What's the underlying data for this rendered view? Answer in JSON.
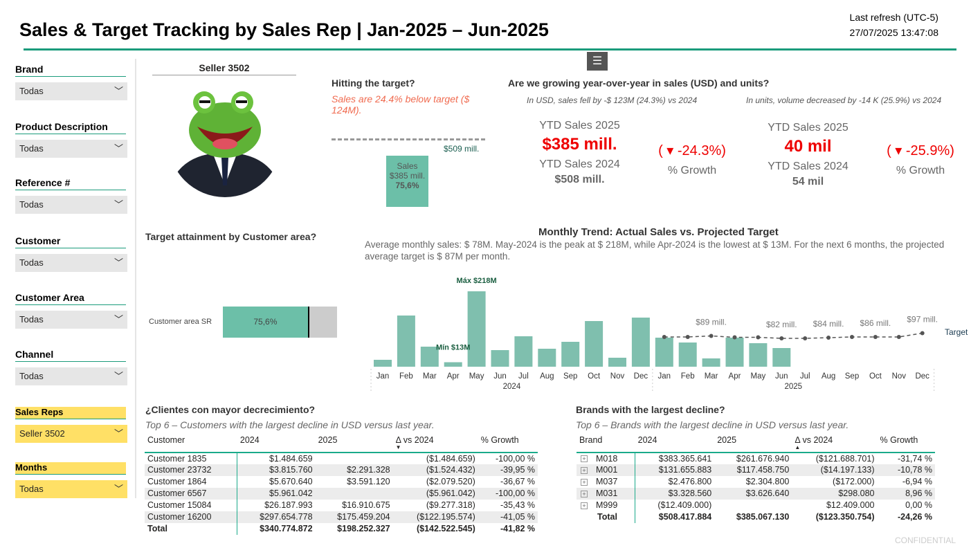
{
  "header": {
    "title": "Sales & Target Tracking by Sales Rep | Jan-2025 – Jun-2025",
    "refresh_label": "Last refresh (UTC-5)",
    "refresh_time": "27/07/2025 13:47:08"
  },
  "filters": [
    {
      "label": "Brand",
      "value": "Todas"
    },
    {
      "label": "Product Description",
      "value": "Todas"
    },
    {
      "label": "Reference #",
      "value": "Todas"
    },
    {
      "label": "Customer",
      "value": "Todas"
    },
    {
      "label": "Customer Area",
      "value": "Todas"
    },
    {
      "label": "Channel",
      "value": "Todas"
    },
    {
      "label": "Sales Reps",
      "value": "Seller 3502"
    },
    {
      "label": "Months",
      "value": "Todas"
    }
  ],
  "seller": {
    "name": "Seller 3502"
  },
  "target": {
    "question": "Hitting the target?",
    "note": "Sales are 24.4% below target ($ 124M).",
    "target_label": "$509 mill.",
    "bar_l1": "Sales",
    "bar_l2": "$385 mill.",
    "bar_l3": "75,6%",
    "attainment": 0.756
  },
  "yoy": {
    "question": "Are we growing year-over-year in sales (USD) and units?",
    "usd_note": "In USD, sales fell by -$ 123M (24.3%) vs 2024",
    "units_note": "In units, volume decreased by -14 K (25.9%) vs 2024",
    "usd": {
      "label25": "YTD Sales 2025",
      "val25": "$385 mill.",
      "growth": "( ▾ -24.3%)",
      "growth_label": "% Growth",
      "label24": "YTD Sales 2024",
      "val24": "$508 mill."
    },
    "units": {
      "label25": "YTD Sales 2025",
      "val25": "40 mil",
      "growth": "( ▾ -25.9%)",
      "growth_label": "% Growth",
      "label24": "YTD Sales 2024",
      "val24": "54 mil"
    }
  },
  "area": {
    "question": "Target attainment by Customer area?",
    "row_label": "Customer area SR",
    "value": "75,6%",
    "attainment": 0.756
  },
  "trend": {
    "title": "Monthly Trend: Actual Sales vs. Projected Target",
    "subtitle": "Average monthly sales: $ 78M. May-2024 is the peak at $ 218M, while Apr-2024 is the lowest at $ 13M. For the next 6 months, the projected average target is $ 87M per month."
  },
  "chart_data": {
    "type": "bar",
    "units": "USD millions",
    "months": [
      "Jan",
      "Feb",
      "Mar",
      "Apr",
      "May",
      "Jun",
      "Jul",
      "Aug",
      "Sep",
      "Oct",
      "Nov",
      "Dec",
      "Jan",
      "Feb",
      "Mar",
      "Apr",
      "May",
      "Jun",
      "Jul",
      "Aug",
      "Sep",
      "Oct",
      "Nov",
      "Dec"
    ],
    "years": [
      "2024",
      "2025"
    ],
    "sales": [
      20,
      148,
      58,
      13,
      218,
      48,
      88,
      52,
      72,
      132,
      26,
      142,
      84,
      70,
      24,
      84,
      68,
      54,
      null,
      null,
      null,
      null,
      null,
      null
    ],
    "target": [
      null,
      null,
      null,
      null,
      null,
      null,
      null,
      null,
      null,
      null,
      null,
      null,
      86,
      86,
      89,
      85,
      85,
      82,
      82,
      84,
      86,
      86,
      86,
      97
    ],
    "target_labels": [
      {
        "i": 14,
        "text": "$89 mill."
      },
      {
        "i": 17,
        "text": "$82 mill."
      },
      {
        "i": 19,
        "text": "$84 mill."
      },
      {
        "i": 21,
        "text": "$86 mill."
      },
      {
        "i": 23,
        "text": "$97 mill."
      }
    ],
    "max_label": "Máx $218M",
    "min_label": "Mín $13M",
    "series_label": "Target",
    "bar_color": "#7fbfae",
    "line_color": "#555555"
  },
  "customers": {
    "question": "¿Clientes con mayor decrecimiento?",
    "note": "Top 6 – Customers with the largest decline in USD versus last year.",
    "columns": [
      "Customer",
      "2024",
      "2025",
      "Δ vs 2024",
      "% Growth"
    ],
    "rows": [
      [
        "Customer 1835",
        "$1.484.659",
        "",
        "($1.484.659)",
        "-100,00 %"
      ],
      [
        "Customer 23732",
        "$3.815.760",
        "$2.291.328",
        "($1.524.432)",
        "-39,95 %"
      ],
      [
        "Customer 1864",
        "$5.670.640",
        "$3.591.120",
        "($2.079.520)",
        "-36,67 %"
      ],
      [
        "Customer 6567",
        "$5.961.042",
        "",
        "($5.961.042)",
        "-100,00 %"
      ],
      [
        "Customer 15084",
        "$26.187.993",
        "$16.910.675",
        "($9.277.318)",
        "-35,43 %"
      ],
      [
        "Customer 16200",
        "$297.654.778",
        "$175.459.204",
        "($122.195.574)",
        "-41,05 %"
      ]
    ],
    "total": [
      "Total",
      "$340.774.872",
      "$198.252.327",
      "($142.522.545)",
      "-41,82 %"
    ]
  },
  "brands": {
    "question": "Brands with the largest decline?",
    "note": "Top 6 – Brands with the largest decline in USD versus last year.",
    "columns": [
      "Brand",
      "2024",
      "2025",
      "Δ vs 2024",
      "% Growth"
    ],
    "rows": [
      [
        "M018",
        "$383.365.641",
        "$261.676.940",
        "($121.688.701)",
        "-31,74 %"
      ],
      [
        "M001",
        "$131.655.883",
        "$117.458.750",
        "($14.197.133)",
        "-10,78 %"
      ],
      [
        "M037",
        "$2.476.800",
        "$2.304.800",
        "($172.000)",
        "-6,94 %"
      ],
      [
        "M031",
        "$3.328.560",
        "$3.626.640",
        "$298.080",
        "8,96 %"
      ],
      [
        "M999",
        "($12.409.000)",
        "",
        "$12.409.000",
        "0,00 %"
      ]
    ],
    "total": [
      "Total",
      "$508.417.884",
      "$385.067.130",
      "($123.350.754)",
      "-24,26 %"
    ]
  },
  "footer": {
    "confidential": "CONFIDENTIAL"
  }
}
